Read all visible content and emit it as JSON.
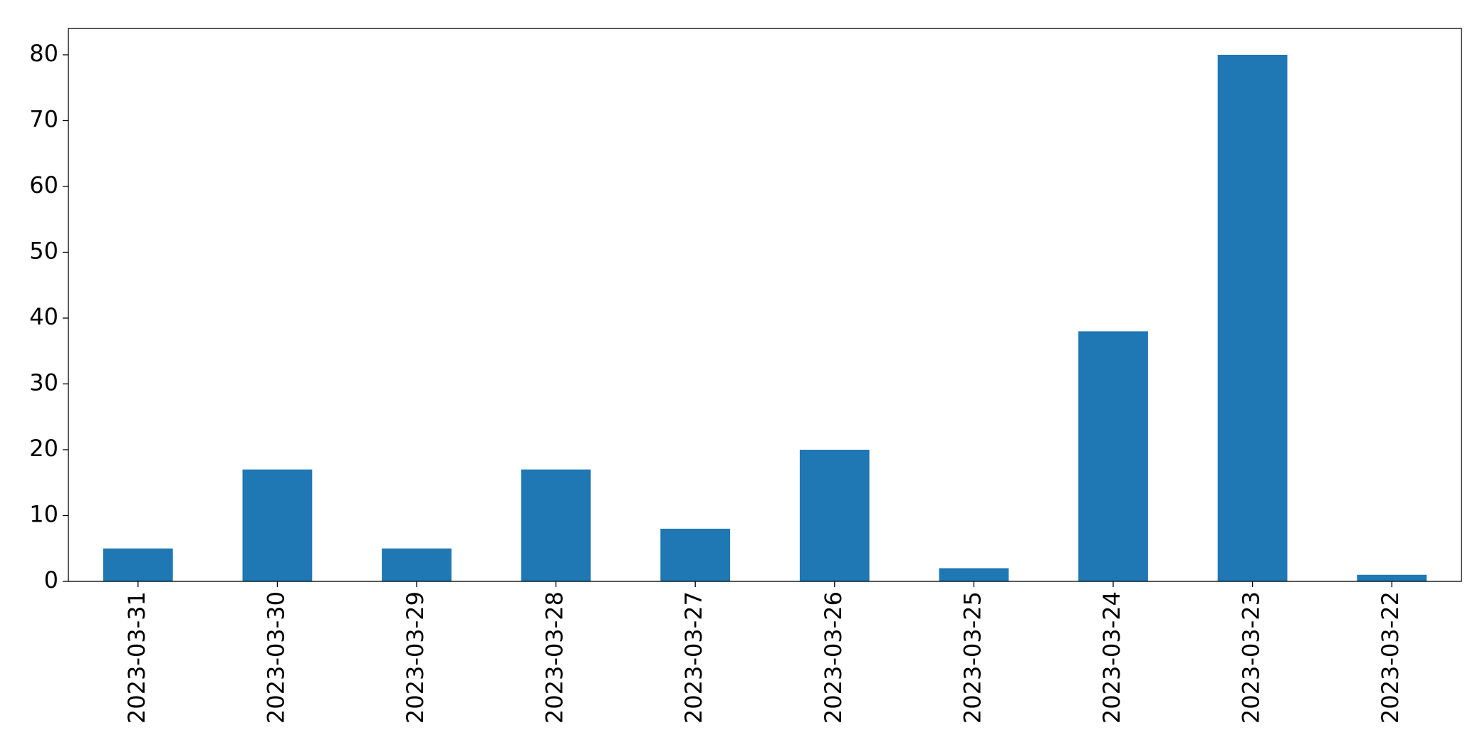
{
  "chart_data": {
    "type": "bar",
    "categories": [
      "2023-03-31",
      "2023-03-30",
      "2023-03-29",
      "2023-03-28",
      "2023-03-27",
      "2023-03-26",
      "2023-03-25",
      "2023-03-24",
      "2023-03-23",
      "2023-03-22"
    ],
    "values": [
      5,
      17,
      5,
      17,
      8,
      20,
      2,
      38,
      80,
      1
    ],
    "color": "#1f77b4",
    "ylim": [
      0,
      84
    ],
    "yticks": [
      0,
      10,
      20,
      30,
      40,
      50,
      60,
      70,
      80
    ],
    "grid": false
  }
}
